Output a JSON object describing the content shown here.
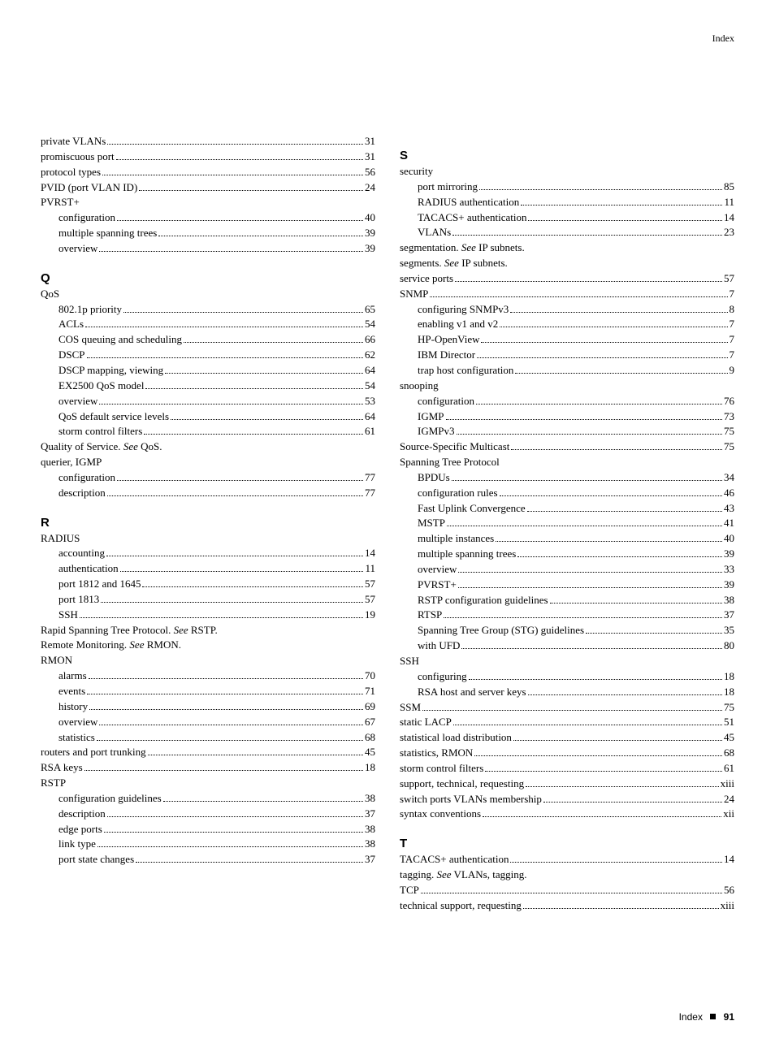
{
  "header": "Index",
  "footer_label": "Index",
  "footer_page": "91",
  "left": [
    {
      "t": "e",
      "label": "private VLANs",
      "pg": "31"
    },
    {
      "t": "e",
      "label": "promiscuous port",
      "pg": "31"
    },
    {
      "t": "e",
      "label": "protocol types",
      "pg": "56"
    },
    {
      "t": "e",
      "label": "PVID (port VLAN ID)",
      "pg": "24"
    },
    {
      "t": "p",
      "label": "PVRST+"
    },
    {
      "t": "e",
      "sub": true,
      "label": "configuration",
      "pg": "40"
    },
    {
      "t": "e",
      "sub": true,
      "label": "multiple spanning trees",
      "pg": "39"
    },
    {
      "t": "e",
      "sub": true,
      "label": "overview",
      "pg": "39"
    },
    {
      "t": "h",
      "label": "Q"
    },
    {
      "t": "p",
      "label": "QoS"
    },
    {
      "t": "e",
      "sub": true,
      "label": "802.1p priority",
      "pg": "65"
    },
    {
      "t": "e",
      "sub": true,
      "label": "ACLs",
      "pg": "54"
    },
    {
      "t": "e",
      "sub": true,
      "label": "COS queuing and scheduling",
      "pg": "66"
    },
    {
      "t": "e",
      "sub": true,
      "label": "DSCP",
      "pg": "62"
    },
    {
      "t": "e",
      "sub": true,
      "label": "DSCP mapping, viewing",
      "pg": "64"
    },
    {
      "t": "e",
      "sub": true,
      "label": "EX2500 QoS model",
      "pg": "54"
    },
    {
      "t": "e",
      "sub": true,
      "label": "overview",
      "pg": "53"
    },
    {
      "t": "e",
      "sub": true,
      "label": "QoS default service levels",
      "pg": "64"
    },
    {
      "t": "e",
      "sub": true,
      "label": "storm control filters",
      "pg": "61"
    },
    {
      "t": "see",
      "label": "Quality of Service.",
      "see": "QoS."
    },
    {
      "t": "p",
      "label": "querier, IGMP"
    },
    {
      "t": "e",
      "sub": true,
      "label": "configuration",
      "pg": "77"
    },
    {
      "t": "e",
      "sub": true,
      "label": "description",
      "pg": "77"
    },
    {
      "t": "h",
      "label": "R"
    },
    {
      "t": "p",
      "label": "RADIUS"
    },
    {
      "t": "e",
      "sub": true,
      "label": "accounting",
      "pg": "14"
    },
    {
      "t": "e",
      "sub": true,
      "label": "authentication",
      "pg": "11"
    },
    {
      "t": "e",
      "sub": true,
      "label": "port 1812 and 1645",
      "pg": "57"
    },
    {
      "t": "e",
      "sub": true,
      "label": "port 1813",
      "pg": "57"
    },
    {
      "t": "e",
      "sub": true,
      "label": "SSH",
      "pg": "19"
    },
    {
      "t": "see",
      "label": "Rapid Spanning Tree Protocol.",
      "see": "RSTP."
    },
    {
      "t": "see",
      "label": "Remote Monitoring.",
      "see": "RMON."
    },
    {
      "t": "p",
      "label": "RMON"
    },
    {
      "t": "e",
      "sub": true,
      "label": "alarms",
      "pg": "70"
    },
    {
      "t": "e",
      "sub": true,
      "label": "events",
      "pg": "71"
    },
    {
      "t": "e",
      "sub": true,
      "label": "history",
      "pg": "69"
    },
    {
      "t": "e",
      "sub": true,
      "label": "overview",
      "pg": "67"
    },
    {
      "t": "e",
      "sub": true,
      "label": "statistics",
      "pg": "68"
    },
    {
      "t": "e",
      "label": "routers and port trunking",
      "pg": "45"
    },
    {
      "t": "e",
      "label": "RSA keys",
      "pg": "18"
    },
    {
      "t": "p",
      "label": "RSTP"
    },
    {
      "t": "e",
      "sub": true,
      "label": "configuration guidelines",
      "pg": "38"
    },
    {
      "t": "e",
      "sub": true,
      "label": "description",
      "pg": "37"
    },
    {
      "t": "e",
      "sub": true,
      "label": "edge ports",
      "pg": "38"
    },
    {
      "t": "e",
      "sub": true,
      "label": "link type",
      "pg": "38"
    },
    {
      "t": "e",
      "sub": true,
      "label": "port state changes",
      "pg": "37"
    }
  ],
  "right": [
    {
      "t": "h",
      "label": "S"
    },
    {
      "t": "p",
      "label": "security"
    },
    {
      "t": "e",
      "sub": true,
      "label": "port mirroring",
      "pg": "85"
    },
    {
      "t": "e",
      "sub": true,
      "label": "RADIUS authentication",
      "pg": "11"
    },
    {
      "t": "e",
      "sub": true,
      "label": "TACACS+ authentication",
      "pg": "14"
    },
    {
      "t": "e",
      "sub": true,
      "label": "VLANs",
      "pg": "23"
    },
    {
      "t": "see",
      "label": "segmentation.",
      "see": "IP subnets."
    },
    {
      "t": "see",
      "label": "segments.",
      "see": "IP subnets."
    },
    {
      "t": "e",
      "label": "service ports",
      "pg": "57"
    },
    {
      "t": "e",
      "label": "SNMP",
      "pg": "7"
    },
    {
      "t": "e",
      "sub": true,
      "label": "configuring SNMPv3",
      "pg": "8"
    },
    {
      "t": "e",
      "sub": true,
      "label": "enabling v1 and v2",
      "pg": "7"
    },
    {
      "t": "e",
      "sub": true,
      "label": "HP-OpenView",
      "pg": "7"
    },
    {
      "t": "e",
      "sub": true,
      "label": "IBM Director",
      "pg": "7"
    },
    {
      "t": "e",
      "sub": true,
      "label": "trap host configuration",
      "pg": "9"
    },
    {
      "t": "p",
      "label": "snooping"
    },
    {
      "t": "e",
      "sub": true,
      "label": "configuration",
      "pg": "76"
    },
    {
      "t": "e",
      "sub": true,
      "label": "IGMP",
      "pg": "73"
    },
    {
      "t": "e",
      "sub": true,
      "label": "IGMPv3",
      "pg": "75"
    },
    {
      "t": "e",
      "label": "Source-Specific Multicast",
      "pg": "75"
    },
    {
      "t": "p",
      "label": "Spanning Tree Protocol"
    },
    {
      "t": "e",
      "sub": true,
      "label": "BPDUs",
      "pg": "34"
    },
    {
      "t": "e",
      "sub": true,
      "label": "configuration rules",
      "pg": "46"
    },
    {
      "t": "e",
      "sub": true,
      "label": "Fast Uplink Convergence",
      "pg": "43"
    },
    {
      "t": "e",
      "sub": true,
      "label": "MSTP",
      "pg": "41"
    },
    {
      "t": "e",
      "sub": true,
      "label": "multiple instances",
      "pg": "40"
    },
    {
      "t": "e",
      "sub": true,
      "label": "multiple spanning trees",
      "pg": "39"
    },
    {
      "t": "e",
      "sub": true,
      "label": "overview",
      "pg": "33"
    },
    {
      "t": "e",
      "sub": true,
      "label": "PVRST+",
      "pg": "39"
    },
    {
      "t": "e",
      "sub": true,
      "label": "RSTP configuration guidelines",
      "pg": "38"
    },
    {
      "t": "e",
      "sub": true,
      "label": "RTSP",
      "pg": "37"
    },
    {
      "t": "e",
      "sub": true,
      "label": "Spanning Tree Group (STG) guidelines",
      "pg": "35"
    },
    {
      "t": "e",
      "sub": true,
      "label": "with UFD",
      "pg": "80"
    },
    {
      "t": "p",
      "label": "SSH"
    },
    {
      "t": "e",
      "sub": true,
      "label": "configuring",
      "pg": "18"
    },
    {
      "t": "e",
      "sub": true,
      "label": "RSA host and server keys",
      "pg": "18"
    },
    {
      "t": "e",
      "label": "SSM",
      "pg": "75"
    },
    {
      "t": "e",
      "label": "static LACP",
      "pg": "51"
    },
    {
      "t": "e",
      "label": "statistical load distribution",
      "pg": "45"
    },
    {
      "t": "e",
      "label": "statistics, RMON",
      "pg": "68"
    },
    {
      "t": "e",
      "label": "storm control filters",
      "pg": "61"
    },
    {
      "t": "e",
      "label": "support, technical, requesting",
      "pg": "xiii"
    },
    {
      "t": "e",
      "label": "switch ports VLANs membership",
      "pg": "24"
    },
    {
      "t": "e",
      "label": "syntax conventions",
      "pg": "xii"
    },
    {
      "t": "h",
      "label": "T"
    },
    {
      "t": "e",
      "label": "TACACS+ authentication",
      "pg": "14"
    },
    {
      "t": "see",
      "label": "tagging.",
      "see": "VLANs, tagging."
    },
    {
      "t": "e",
      "label": "TCP",
      "pg": "56"
    },
    {
      "t": "e",
      "label": "technical support, requesting",
      "pg": "xiii"
    }
  ]
}
